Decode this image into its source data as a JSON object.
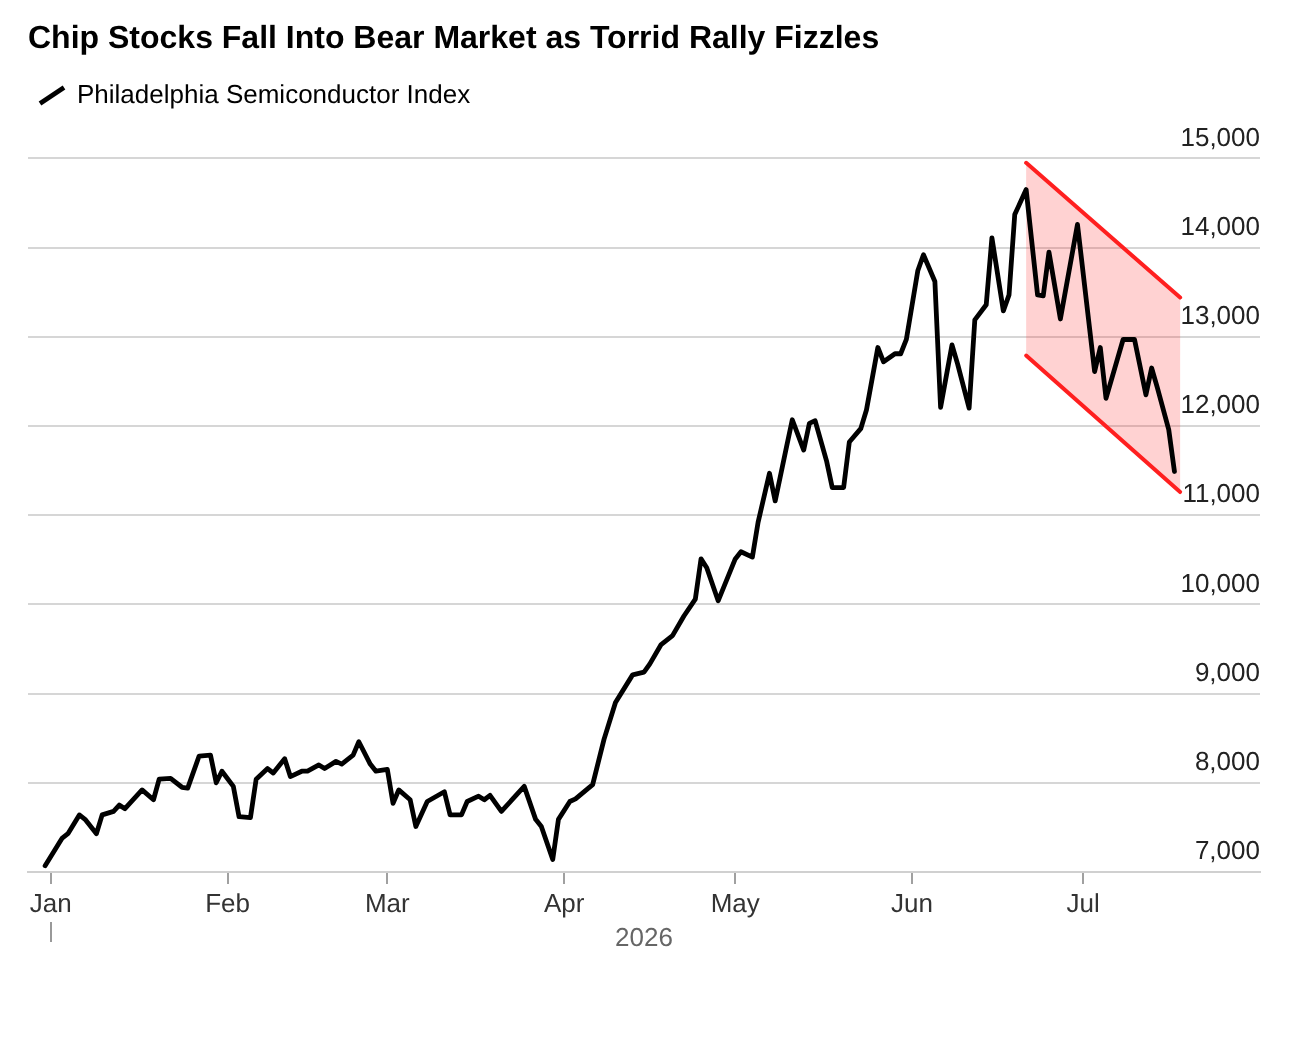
{
  "chart_data": {
    "type": "line",
    "title": "Chip Stocks Fall Into Bear Market as Torrid Rally Fizzles",
    "xlabel": "2026",
    "x": [
      "2025-12-31",
      "2026-01-03",
      "2026-01-04",
      "2026-01-06",
      "2026-01-07",
      "2026-01-09",
      "2026-01-10",
      "2026-01-12",
      "2026-01-13",
      "2026-01-14",
      "2026-01-17",
      "2026-01-19",
      "2026-01-20",
      "2026-01-22",
      "2026-01-24",
      "2026-01-25",
      "2026-01-27",
      "2026-01-29",
      "2026-01-30",
      "2026-01-31",
      "2026-02-02",
      "2026-02-03",
      "2026-02-05",
      "2026-02-06",
      "2026-02-08",
      "2026-02-09",
      "2026-02-11",
      "2026-02-12",
      "2026-02-14",
      "2026-02-15",
      "2026-02-17",
      "2026-02-18",
      "2026-02-20",
      "2026-02-21",
      "2026-02-23",
      "2026-02-24",
      "2026-02-26",
      "2026-02-27",
      "2026-03-01",
      "2026-03-02",
      "2026-03-03",
      "2026-03-05",
      "2026-03-06",
      "2026-03-08",
      "2026-03-11",
      "2026-03-12",
      "2026-03-14",
      "2026-03-15",
      "2026-03-17",
      "2026-03-18",
      "2026-03-19",
      "2026-03-21",
      "2026-03-25",
      "2026-03-27",
      "2026-03-28",
      "2026-03-30",
      "2026-03-31",
      "2026-04-02",
      "2026-04-03",
      "2026-04-06",
      "2026-04-08",
      "2026-04-10",
      "2026-04-13",
      "2026-04-15",
      "2026-04-16",
      "2026-04-18",
      "2026-04-20",
      "2026-04-22",
      "2026-04-24",
      "2026-04-25",
      "2026-04-26",
      "2026-04-28",
      "2026-05-01",
      "2026-05-02",
      "2026-05-04",
      "2026-05-05",
      "2026-05-07",
      "2026-05-08",
      "2026-05-10",
      "2026-05-11",
      "2026-05-13",
      "2026-05-14",
      "2026-05-15",
      "2026-05-17",
      "2026-05-18",
      "2026-05-20",
      "2026-05-21",
      "2026-05-23",
      "2026-05-24",
      "2026-05-26",
      "2026-05-27",
      "2026-05-29",
      "2026-05-30",
      "2026-05-31",
      "2026-06-02",
      "2026-06-03",
      "2026-06-05",
      "2026-06-06",
      "2026-06-08",
      "2026-06-09",
      "2026-06-11",
      "2026-06-12",
      "2026-06-14",
      "2026-06-15",
      "2026-06-17",
      "2026-06-18",
      "2026-06-19",
      "2026-06-21",
      "2026-06-23",
      "2026-06-24",
      "2026-06-25",
      "2026-06-27",
      "2026-06-30",
      "2026-07-03",
      "2026-07-04",
      "2026-07-05",
      "2026-07-08",
      "2026-07-10",
      "2026-07-12",
      "2026-07-13",
      "2026-07-14",
      "2026-07-16",
      "2026-07-17"
    ],
    "series": [
      {
        "name": "Philadelphia Semiconductor Index",
        "color": "#000000",
        "values": [
          7070,
          7380,
          7430,
          7640,
          7590,
          7430,
          7640,
          7680,
          7750,
          7710,
          7920,
          7810,
          8040,
          8050,
          7950,
          7940,
          8300,
          8310,
          8000,
          8130,
          7960,
          7620,
          7610,
          8040,
          8160,
          8110,
          8270,
          8070,
          8130,
          8130,
          8200,
          8160,
          8240,
          8210,
          8310,
          8460,
          8210,
          8130,
          8150,
          7770,
          7920,
          7810,
          7510,
          7790,
          7900,
          7640,
          7640,
          7790,
          7850,
          7810,
          7860,
          7680,
          7960,
          7590,
          7510,
          7140,
          7590,
          7790,
          7820,
          7980,
          8490,
          8900,
          9210,
          9240,
          9330,
          9550,
          9650,
          9870,
          10060,
          10510,
          10410,
          10040,
          10510,
          10590,
          10530,
          10920,
          11470,
          11160,
          11770,
          12070,
          11730,
          12030,
          12060,
          11610,
          11310,
          11310,
          11820,
          11970,
          12180,
          12880,
          12720,
          12810,
          12810,
          12970,
          13740,
          13920,
          13620,
          12210,
          12910,
          12690,
          12200,
          13190,
          13360,
          14110,
          13290,
          13470,
          14370,
          14650,
          13470,
          13460,
          13950,
          13200,
          14260,
          12610,
          12880,
          12310,
          12970,
          12970,
          12350,
          12650,
          12430,
          11960,
          11490
        ]
      },
      {
        "color": "#ff1f1f",
        "x": [
          "2026-06-21",
          "2026-07-18"
        ],
        "values": [
          14950,
          13440
        ],
        "lower": [
          12790,
          11260
        ],
        "upper": [
          14950,
          13440
        ]
      },
      {
        "color": "#ff1f1f",
        "x": [
          "2026-06-21",
          "2026-07-18"
        ],
        "values": [
          12790,
          11260
        ]
      }
    ],
    "xlim": [
      "2025-12-28",
      "2026-08-01"
    ],
    "xticks": [
      {
        "value": "2026-01-01",
        "label": "Jan"
      },
      {
        "value": "2026-02-01",
        "label": "Feb"
      },
      {
        "value": "2026-03-01",
        "label": "Mar"
      },
      {
        "value": "2026-04-01",
        "label": "Apr"
      },
      {
        "value": "2026-05-01",
        "label": "May"
      },
      {
        "value": "2026-06-01",
        "label": "Jun"
      },
      {
        "value": "2026-07-01",
        "label": "Jul"
      }
    ],
    "ylim": [
      7000,
      15000
    ],
    "yticks": [
      {
        "value": 7000,
        "label": "7,000"
      },
      {
        "value": 8000,
        "label": "8,000"
      },
      {
        "value": 9000,
        "label": "9,000"
      },
      {
        "value": 10000,
        "label": "10,000"
      },
      {
        "value": 11000,
        "label": "11,000"
      },
      {
        "value": 12000,
        "label": "12,000"
      },
      {
        "value": 13000,
        "label": "13,000"
      },
      {
        "value": 14000,
        "label": "14,000"
      },
      {
        "value": 15000,
        "label": "15,000"
      }
    ],
    "grid": "y",
    "legend": "top left",
    "marker": "none"
  }
}
